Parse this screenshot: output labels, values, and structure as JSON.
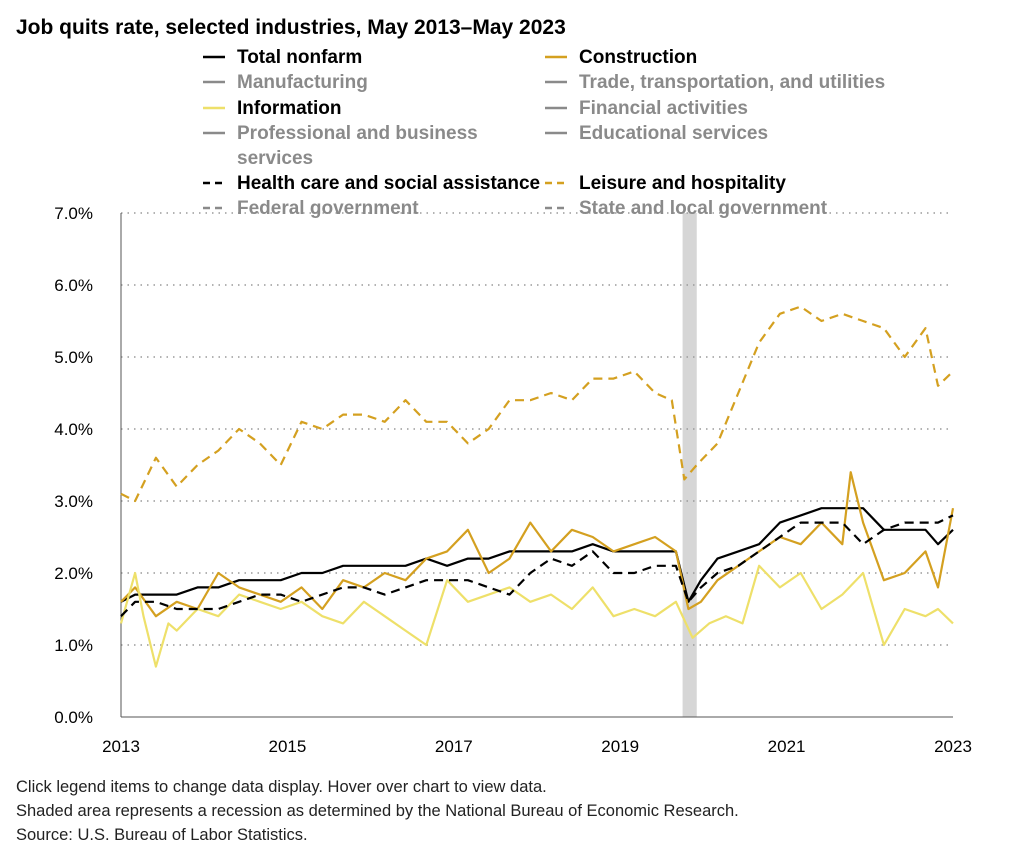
{
  "chart_data": {
    "type": "line",
    "title": "Job quits rate, selected industries, May 2013–May 2023",
    "xlabel": "",
    "ylabel": "",
    "x_range": [
      2013.33,
      2023.33
    ],
    "ylim": [
      0,
      7
    ],
    "y_ticks": [
      "0.0%",
      "1.0%",
      "2.0%",
      "3.0%",
      "4.0%",
      "5.0%",
      "6.0%",
      "7.0%"
    ],
    "y_tick_values": [
      0,
      1,
      2,
      3,
      4,
      5,
      6,
      7
    ],
    "x_ticks": [
      "2013",
      "2015",
      "2017",
      "2019",
      "2021",
      "2023"
    ],
    "x_tick_values": [
      2013.33,
      2015.33,
      2017.33,
      2019.33,
      2021.33,
      2023.33
    ],
    "grid": true,
    "recession": {
      "start": 2020.08,
      "end": 2020.25
    },
    "legend": {
      "placement": "top",
      "entries": [
        {
          "label": "Total nonfarm",
          "color": "#000000",
          "dash": false,
          "active": true
        },
        {
          "label": "Construction",
          "color": "#d4a020",
          "dash": false,
          "active": true
        },
        {
          "label": "Manufacturing",
          "color": "#8a8a8a",
          "dash": false,
          "active": false
        },
        {
          "label": "Trade, transportation, and utilities",
          "color": "#8a8a8a",
          "dash": false,
          "active": false
        },
        {
          "label": "Information",
          "color": "#eee06a",
          "dash": false,
          "active": true
        },
        {
          "label": "Financial activities",
          "color": "#8a8a8a",
          "dash": false,
          "active": false
        },
        {
          "label": "Professional and business",
          "label2": "services",
          "color": "#8a8a8a",
          "dash": false,
          "active": false
        },
        {
          "label": "Educational services",
          "color": "#8a8a8a",
          "dash": false,
          "active": false
        },
        {
          "label": "Health care and social assistance",
          "color": "#000000",
          "dash": true,
          "active": true
        },
        {
          "label": "Leisure and hospitality",
          "color": "#d4a020",
          "dash": true,
          "active": true
        },
        {
          "label": "Federal government",
          "color": "#8a8a8a",
          "dash": true,
          "active": false
        },
        {
          "label": "State and local government",
          "color": "#8a8a8a",
          "dash": true,
          "active": false
        }
      ]
    },
    "series": [
      {
        "name": "Total nonfarm",
        "x": [
          2013.33,
          2013.5,
          2013.75,
          2014.0,
          2014.25,
          2014.5,
          2014.75,
          2015.0,
          2015.25,
          2015.5,
          2015.75,
          2016.0,
          2016.25,
          2016.5,
          2016.75,
          2017.0,
          2017.25,
          2017.5,
          2017.75,
          2018.0,
          2018.25,
          2018.5,
          2018.75,
          2019.0,
          2019.25,
          2019.5,
          2019.75,
          2020.0,
          2020.15,
          2020.3,
          2020.5,
          2020.75,
          2021.0,
          2021.25,
          2021.5,
          2021.75,
          2022.0,
          2022.25,
          2022.5,
          2022.75,
          2023.0,
          2023.15,
          2023.33
        ],
        "values": [
          1.6,
          1.7,
          1.7,
          1.7,
          1.8,
          1.8,
          1.9,
          1.9,
          1.9,
          2.0,
          2.0,
          2.1,
          2.1,
          2.1,
          2.1,
          2.2,
          2.1,
          2.2,
          2.2,
          2.3,
          2.3,
          2.3,
          2.3,
          2.4,
          2.3,
          2.3,
          2.3,
          2.3,
          1.6,
          1.9,
          2.2,
          2.3,
          2.4,
          2.7,
          2.8,
          2.9,
          2.9,
          2.9,
          2.6,
          2.6,
          2.6,
          2.4,
          2.6
        ]
      },
      {
        "name": "Construction",
        "x": [
          2013.33,
          2013.5,
          2013.75,
          2014.0,
          2014.25,
          2014.5,
          2014.75,
          2015.0,
          2015.25,
          2015.5,
          2015.75,
          2016.0,
          2016.25,
          2016.5,
          2016.75,
          2017.0,
          2017.25,
          2017.5,
          2017.75,
          2018.0,
          2018.25,
          2018.5,
          2018.75,
          2019.0,
          2019.25,
          2019.5,
          2019.75,
          2020.0,
          2020.15,
          2020.3,
          2020.5,
          2020.75,
          2021.0,
          2021.25,
          2021.5,
          2021.75,
          2022.0,
          2022.1,
          2022.25,
          2022.5,
          2022.75,
          2023.0,
          2023.15,
          2023.33
        ],
        "values": [
          1.6,
          1.8,
          1.4,
          1.6,
          1.5,
          2.0,
          1.8,
          1.7,
          1.6,
          1.8,
          1.5,
          1.9,
          1.8,
          2.0,
          1.9,
          2.2,
          2.3,
          2.6,
          2.0,
          2.2,
          2.7,
          2.3,
          2.6,
          2.5,
          2.3,
          2.4,
          2.5,
          2.3,
          1.5,
          1.6,
          1.9,
          2.1,
          2.3,
          2.5,
          2.4,
          2.7,
          2.4,
          3.4,
          2.7,
          1.9,
          2.0,
          2.3,
          1.8,
          2.9
        ]
      },
      {
        "name": "Information",
        "x": [
          2013.33,
          2013.5,
          2013.6,
          2013.75,
          2013.9,
          2014.0,
          2014.25,
          2014.5,
          2014.75,
          2015.0,
          2015.25,
          2015.5,
          2015.75,
          2016.0,
          2016.25,
          2016.5,
          2016.75,
          2017.0,
          2017.25,
          2017.5,
          2017.75,
          2018.0,
          2018.25,
          2018.5,
          2018.75,
          2019.0,
          2019.25,
          2019.5,
          2019.75,
          2020.0,
          2020.2,
          2020.4,
          2020.6,
          2020.8,
          2021.0,
          2021.25,
          2021.5,
          2021.75,
          2022.0,
          2022.25,
          2022.5,
          2022.75,
          2023.0,
          2023.15,
          2023.33
        ],
        "values": [
          1.3,
          2.0,
          1.4,
          0.7,
          1.3,
          1.2,
          1.5,
          1.4,
          1.7,
          1.6,
          1.5,
          1.6,
          1.4,
          1.3,
          1.6,
          1.4,
          1.2,
          1.0,
          1.9,
          1.6,
          1.7,
          1.8,
          1.6,
          1.7,
          1.5,
          1.8,
          1.4,
          1.5,
          1.4,
          1.6,
          1.1,
          1.3,
          1.4,
          1.3,
          2.1,
          1.8,
          2.0,
          1.5,
          1.7,
          2.0,
          1.0,
          1.5,
          1.4,
          1.5,
          1.3
        ]
      },
      {
        "name": "Health care and social assistance",
        "x": [
          2013.33,
          2013.5,
          2013.75,
          2014.0,
          2014.25,
          2014.5,
          2014.75,
          2015.0,
          2015.25,
          2015.5,
          2015.75,
          2016.0,
          2016.25,
          2016.5,
          2016.75,
          2017.0,
          2017.25,
          2017.5,
          2017.75,
          2018.0,
          2018.25,
          2018.5,
          2018.75,
          2019.0,
          2019.25,
          2019.5,
          2019.75,
          2020.0,
          2020.15,
          2020.3,
          2020.5,
          2020.75,
          2021.0,
          2021.25,
          2021.5,
          2021.75,
          2022.0,
          2022.25,
          2022.5,
          2022.75,
          2023.0,
          2023.15,
          2023.33
        ],
        "values": [
          1.4,
          1.6,
          1.6,
          1.5,
          1.5,
          1.5,
          1.6,
          1.7,
          1.7,
          1.6,
          1.7,
          1.8,
          1.8,
          1.7,
          1.8,
          1.9,
          1.9,
          1.9,
          1.8,
          1.7,
          2.0,
          2.2,
          2.1,
          2.3,
          2.0,
          2.0,
          2.1,
          2.1,
          1.6,
          1.8,
          2.0,
          2.1,
          2.3,
          2.5,
          2.7,
          2.7,
          2.7,
          2.4,
          2.6,
          2.7,
          2.7,
          2.7,
          2.8
        ]
      },
      {
        "name": "Leisure and hospitality",
        "x": [
          2013.33,
          2013.5,
          2013.75,
          2014.0,
          2014.25,
          2014.5,
          2014.75,
          2015.0,
          2015.25,
          2015.5,
          2015.75,
          2016.0,
          2016.25,
          2016.5,
          2016.75,
          2017.0,
          2017.25,
          2017.5,
          2017.75,
          2018.0,
          2018.25,
          2018.5,
          2018.75,
          2019.0,
          2019.25,
          2019.5,
          2019.75,
          2019.95,
          2020.1,
          2020.25,
          2020.5,
          2020.75,
          2021.0,
          2021.25,
          2021.5,
          2021.75,
          2022.0,
          2022.25,
          2022.5,
          2022.75,
          2023.0,
          2023.15,
          2023.33
        ],
        "values": [
          3.1,
          3.0,
          3.6,
          3.2,
          3.5,
          3.7,
          4.0,
          3.8,
          3.5,
          4.1,
          4.0,
          4.2,
          4.2,
          4.1,
          4.4,
          4.1,
          4.1,
          3.8,
          4.0,
          4.4,
          4.4,
          4.5,
          4.4,
          4.7,
          4.7,
          4.8,
          4.5,
          4.4,
          3.3,
          3.5,
          3.8,
          4.5,
          5.2,
          5.6,
          5.7,
          5.5,
          5.6,
          5.5,
          5.4,
          5.0,
          5.4,
          4.6,
          4.8
        ]
      }
    ]
  },
  "footnotes": {
    "line1": "Click legend items to change data display. Hover over chart to view data.",
    "line2": "Shaded area represents a recession as determined by the National Bureau of Economic Research.",
    "line3": "Source: U.S. Bureau of Labor Statistics."
  }
}
